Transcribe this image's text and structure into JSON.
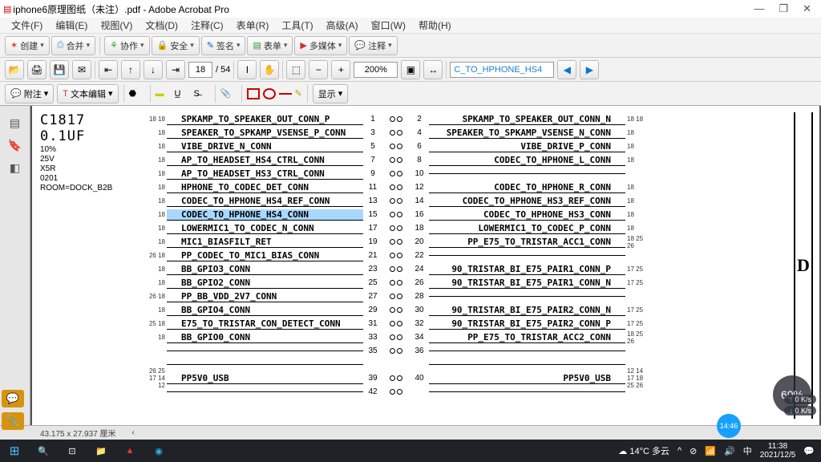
{
  "title": "iphone6原理图纸（未注）.pdf - Adobe Acrobat Pro",
  "menus": [
    "文件(F)",
    "编辑(E)",
    "视图(V)",
    "文档(D)",
    "注释(C)",
    "表单(R)",
    "工具(T)",
    "高级(A)",
    "窗口(W)",
    "帮助(H)"
  ],
  "tb1": {
    "create": "创建",
    "combine": "合并",
    "collab": "协作",
    "secure": "安全",
    "sign": "签名",
    "forms": "表单",
    "media": "多媒体",
    "comment": "注释"
  },
  "tb2": {
    "page": "18",
    "total": "/ 54",
    "zoom": "200%",
    "search": "C_TO_HPHONE_HS4"
  },
  "tb3": {
    "attach": "附注",
    "edit": "文本编辑",
    "show": "显示"
  },
  "status": "43.175 x 27.937 厘米",
  "overlay": {
    "zoom": "60%",
    "spd1": "0 K/s",
    "spd2": "0 K/s",
    "time": "14:46"
  },
  "taskbar": {
    "weather": "14°C 多云",
    "time": "11:38",
    "date": "2021/12/5"
  },
  "cap": {
    "name": "C1817",
    "val": "0.1UF",
    "tol": "10%",
    "volt": "25V",
    "size": "X5R",
    "pkg": "0201",
    "room": "ROOM=DOCK_B2B"
  },
  "frame": "D",
  "rows": [
    {
      "l": "SPKAMP_TO_SPEAKER_OUT_CONN_P",
      "pl": "1",
      "pr": "2",
      "r": "SPKAMP_TO_SPEAKER_OUT_CONN_N",
      "nl": "18 18",
      "nr": "18 18"
    },
    {
      "l": "SPEAKER_TO_SPKAMP_VSENSE_P_CONN",
      "pl": "3",
      "pr": "4",
      "r": "SPEAKER_TO_SPKAMP_VSENSE_N_CONN",
      "nl": "18",
      "nr": "18"
    },
    {
      "l": "VIBE_DRIVE_N_CONN",
      "pl": "5",
      "pr": "6",
      "r": "VIBE_DRIVE_P_CONN",
      "nl": "18",
      "nr": "18"
    },
    {
      "l": "AP_TO_HEADSET_HS4_CTRL_CONN",
      "pl": "7",
      "pr": "8",
      "r": "CODEC_TO_HPHONE_L_CONN",
      "nl": "18",
      "nr": "18"
    },
    {
      "l": "AP_TO_HEADSET_HS3_CTRL_CONN",
      "pl": "9",
      "pr": "10",
      "r": "",
      "nl": "18",
      "nr": ""
    },
    {
      "l": "HPHONE_TO_CODEC_DET_CONN",
      "pl": "11",
      "pr": "12",
      "r": "CODEC_TO_HPHONE_R_CONN",
      "nl": "18",
      "nr": "18"
    },
    {
      "l": "CODEC_TO_HPHONE_HS4_REF_CONN",
      "pl": "13",
      "pr": "14",
      "r": "CODEC_TO_HPHONE_HS3_REF_CONN",
      "nl": "18",
      "nr": "18"
    },
    {
      "l": "CODEC_TO_HPHONE_HS4_CONN",
      "pl": "15",
      "pr": "16",
      "r": "CODEC_TO_HPHONE_HS3_CONN",
      "nl": "18",
      "nr": "18",
      "hl": true
    },
    {
      "l": "LOWERMIC1_TO_CODEC_N_CONN",
      "pl": "17",
      "pr": "18",
      "r": "LOWERMIC1_TO_CODEC_P_CONN",
      "nl": "18",
      "nr": "18"
    },
    {
      "l": "MIC1_BIASFILT_RET",
      "pl": "19",
      "pr": "20",
      "r": "PP_E75_TO_TRISTAR_ACC1_CONN",
      "nl": "18",
      "nr": "18 25 26"
    },
    {
      "l": "PP_CODEC_TO_MIC1_BIAS_CONN",
      "pl": "21",
      "pr": "22",
      "r": "",
      "nl": "26 18",
      "nr": ""
    },
    {
      "l": "BB_GPIO3_CONN",
      "pl": "23",
      "pr": "24",
      "r": "90_TRISTAR_BI_E75_PAIR1_CONN_P",
      "nl": "18",
      "nr": "17 25"
    },
    {
      "l": "BB_GPIO2_CONN",
      "pl": "25",
      "pr": "26",
      "r": "90_TRISTAR_BI_E75_PAIR1_CONN_N",
      "nl": "18",
      "nr": "17 25"
    },
    {
      "l": "PP_BB_VDD_2V7_CONN",
      "pl": "27",
      "pr": "28",
      "r": "",
      "nl": "26 18",
      "nr": ""
    },
    {
      "l": "BB_GPIO4_CONN",
      "pl": "29",
      "pr": "30",
      "r": "90_TRISTAR_BI_E75_PAIR2_CONN_N",
      "nl": "18",
      "nr": "17 25"
    },
    {
      "l": "E75_TO_TRISTAR_CON_DETECT_CONN",
      "pl": "31",
      "pr": "32",
      "r": "90_TRISTAR_BI_E75_PAIR2_CONN_P",
      "nl": "25 18",
      "nr": "17 25"
    },
    {
      "l": "BB_GPIO0_CONN",
      "pl": "33",
      "pr": "34",
      "r": "PP_E75_TO_TRISTAR_ACC2_CONN",
      "nl": "18",
      "nr": "18 25 26"
    },
    {
      "l": "",
      "pl": "35",
      "pr": "36",
      "r": ""
    },
    {
      "l": "",
      "pl": "",
      "pr": "",
      "r": ""
    },
    {
      "l": "PP5V0_USB",
      "pl": "39",
      "pr": "40",
      "r": "PP5V0_USB",
      "nl": "26 25 17 14 12",
      "nr": "12 14 17 18 25 26"
    },
    {
      "l": "",
      "pl": "42",
      "pr": "",
      "r": ""
    }
  ]
}
